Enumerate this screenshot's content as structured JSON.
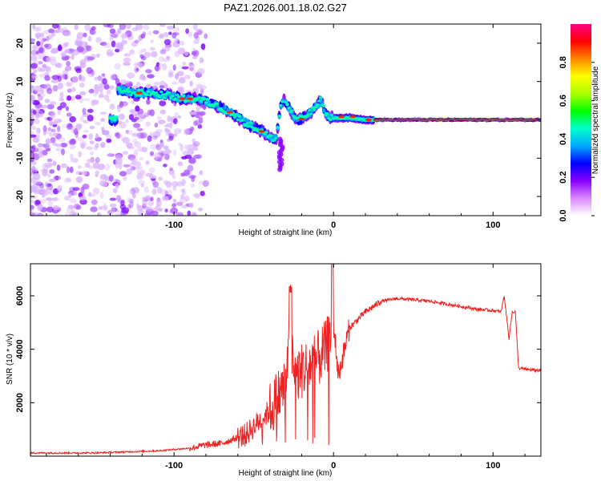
{
  "title": "PAZ1.2026.001.18.02.G27",
  "chart_data": [
    {
      "type": "heatmap",
      "name": "spectrogram",
      "xlabel": "Height of straight line (km)",
      "ylabel": "Frequency (Hz)",
      "xlim": [
        -190,
        130
      ],
      "ylim": [
        -25,
        25
      ],
      "x_ticks": [
        -100,
        0,
        100
      ],
      "x_tick_labels": [
        "-100",
        "0",
        "100"
      ],
      "y_ticks": [
        -20,
        -10,
        0,
        10,
        20
      ],
      "y_tick_labels": [
        "-20",
        "-10",
        "0",
        "10",
        "20"
      ],
      "ridge": {
        "x": [
          -135,
          -125,
          -115,
          -105,
          -95,
          -85,
          -75,
          -65,
          -58,
          -50,
          -45,
          -40,
          -36,
          -33,
          -31,
          -29,
          -25,
          -22,
          -18,
          -14,
          -10,
          -8,
          -6,
          -4,
          0,
          10,
          20,
          30,
          60,
          100,
          130
        ],
        "y": [
          8,
          7,
          7,
          6.5,
          5.5,
          5.5,
          4,
          2,
          0,
          -2,
          -3,
          -4.5,
          -5,
          4,
          5,
          4,
          1,
          0,
          1,
          2,
          4,
          5,
          3,
          1,
          0.5,
          0.5,
          0,
          0,
          0,
          0,
          0
        ]
      }
    },
    {
      "type": "line",
      "name": "snr",
      "xlabel": "Height of straight line (km)",
      "ylabel": "SNR (10 * v/v)",
      "xlim": [
        -190,
        130
      ],
      "ylim": [
        0,
        7200
      ],
      "x_ticks": [
        -100,
        0,
        100
      ],
      "x_tick_labels": [
        "-100",
        "0",
        "100"
      ],
      "y_ticks": [
        2000,
        4000,
        6000
      ],
      "y_tick_labels": [
        "2000",
        "4000",
        "6000"
      ],
      "series": [
        {
          "name": "SNR",
          "color": "#ee2222",
          "x": [
            -190,
            -150,
            -110,
            -90,
            -80,
            -70,
            -60,
            -55,
            -50,
            -45,
            -40,
            -35,
            -30,
            -27,
            -25,
            -20,
            -15,
            -10,
            -5,
            -2,
            0,
            3,
            10,
            20,
            30,
            40,
            50,
            60,
            70,
            80,
            90,
            100,
            105,
            107,
            110,
            112,
            114,
            116,
            120,
            130
          ],
          "y": [
            120,
            120,
            200,
            300,
            420,
            480,
            700,
            800,
            1100,
            1400,
            1700,
            2200,
            2700,
            4600,
            3000,
            3200,
            3400,
            3600,
            4000,
            4500,
            5000,
            3000,
            4800,
            5400,
            5800,
            5900,
            5850,
            5800,
            5700,
            5600,
            5500,
            5450,
            5400,
            6000,
            4400,
            5400,
            5400,
            3300,
            3250,
            3200
          ]
        }
      ]
    }
  ],
  "colorbar": {
    "label": "Normalized spectral amplitude",
    "ticks": [
      0.0,
      0.2,
      0.4,
      0.6,
      0.8
    ],
    "tick_labels": [
      "0.0",
      "0.2",
      "0.4",
      "0.6",
      "0.8"
    ],
    "stops": [
      "#ffffff",
      "#dd88ff",
      "#8800ff",
      "#0000ff",
      "#00aaff",
      "#00ffcc",
      "#00ff00",
      "#aaff00",
      "#ffff00",
      "#ff8800",
      "#ff0000",
      "#ff0088"
    ]
  }
}
